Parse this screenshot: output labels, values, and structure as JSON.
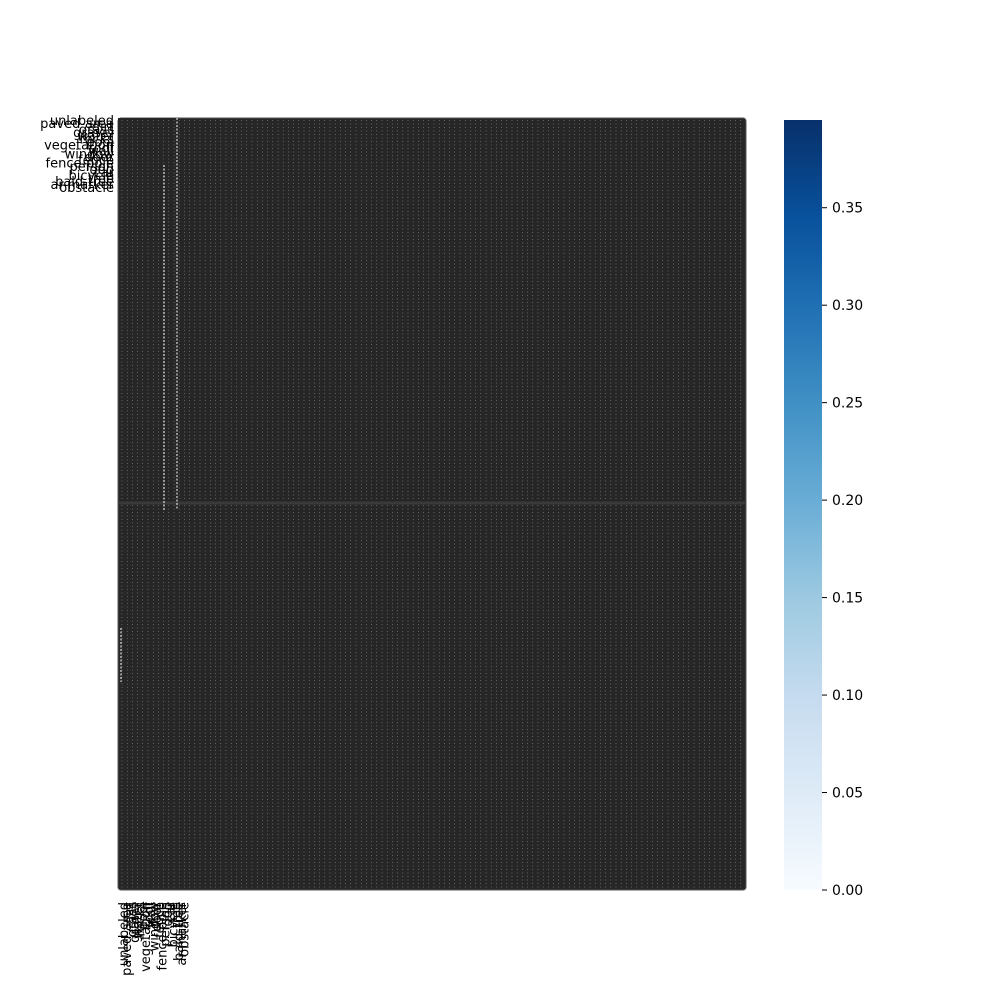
{
  "chart_data": {
    "type": "heatmap",
    "title": "",
    "xlabel": "",
    "ylabel": "",
    "row_labels": [
      "unlabeled",
      "paved-area",
      "dirt",
      "grass",
      "gravel",
      "water",
      "rocks",
      "pool",
      "vegetation",
      "roof",
      "wall",
      "window",
      "door",
      "fence",
      "fence-pole",
      "person",
      "dog",
      "car",
      "bicycle",
      "tree",
      "bald-tree",
      "ar-marker",
      "obstacle"
    ],
    "col_labels": [
      "unlabeled",
      "paved-area",
      "dirt",
      "grass",
      "gravel",
      "water",
      "rocks",
      "pool",
      "vegetation",
      "roof",
      "wall",
      "window",
      "door",
      "fence",
      "fence-pole",
      "person",
      "dog",
      "car",
      "bicycle",
      "tree",
      "bald-tree",
      "ar-marker",
      "obstacle"
    ],
    "cell_value_predominant": 0.0,
    "cell_fill_observed": "#262626",
    "colormap": "Blues",
    "colorbar": {
      "vmin": 0.0,
      "vmax": 0.395,
      "ticks": [
        0.0,
        0.05,
        0.1,
        0.15,
        0.2,
        0.25,
        0.3,
        0.35
      ],
      "tick_labels": [
        "0.00",
        "0.05",
        "0.10",
        "0.15",
        "0.20",
        "0.25",
        "0.30",
        "0.35"
      ],
      "gradient_colors": [
        "#f7fbff",
        "#deebf7",
        "#c6dbef",
        "#9ecae1",
        "#6baed6",
        "#4292c6",
        "#2171b5",
        "#08519c",
        "#08306b"
      ]
    },
    "grid": true,
    "legend": "colorbar-right"
  }
}
